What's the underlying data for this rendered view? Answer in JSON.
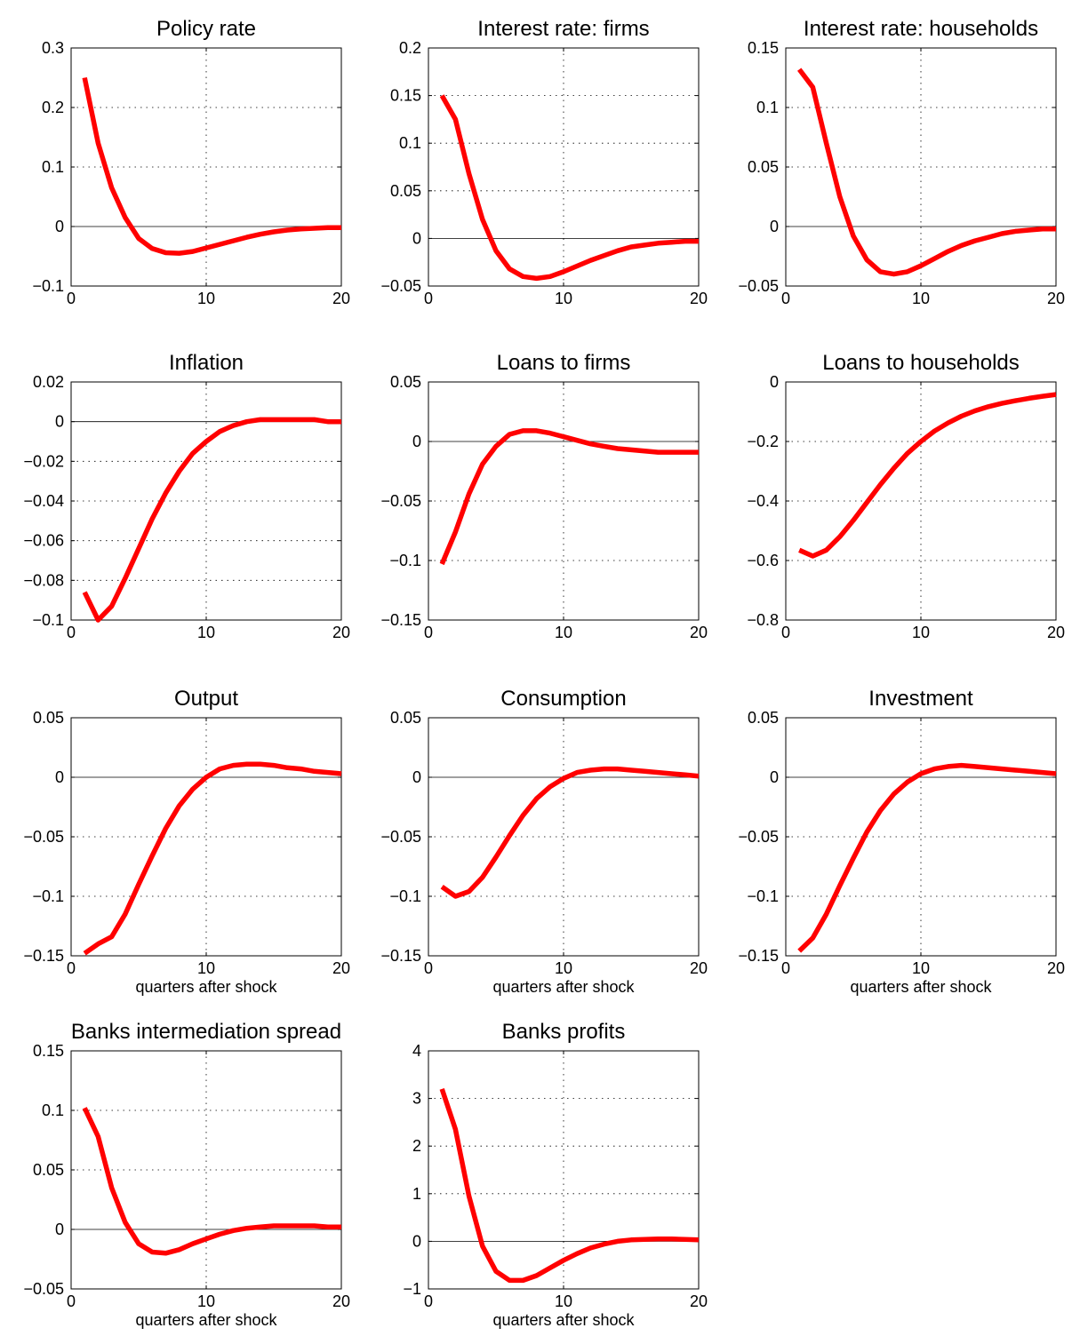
{
  "colors": {
    "line": "#ff0000",
    "axis": "#000000"
  },
  "chart_data": [
    {
      "type": "line",
      "title": "Policy rate",
      "xlabel": "",
      "xlim": [
        0,
        20
      ],
      "xticks": [
        0,
        10,
        20
      ],
      "ylim": [
        -0.1,
        0.3
      ],
      "yticks": [
        -0.1,
        0,
        0.1,
        0.2,
        0.3
      ],
      "ytick_labels": [
        "−0.1",
        "0",
        "0.1",
        "0.2",
        "0.3"
      ],
      "grid": true,
      "x": [
        1,
        2,
        3,
        4,
        5,
        6,
        7,
        8,
        9,
        10,
        11,
        12,
        13,
        14,
        15,
        16,
        17,
        18,
        19,
        20
      ],
      "values": [
        0.25,
        0.14,
        0.065,
        0.015,
        -0.02,
        -0.037,
        -0.044,
        -0.045,
        -0.042,
        -0.036,
        -0.03,
        -0.024,
        -0.018,
        -0.013,
        -0.009,
        -0.006,
        -0.004,
        -0.003,
        -0.002,
        -0.002
      ]
    },
    {
      "type": "line",
      "title": "Interest rate: firms",
      "xlabel": "",
      "xlim": [
        0,
        20
      ],
      "xticks": [
        0,
        10,
        20
      ],
      "ylim": [
        -0.05,
        0.2
      ],
      "yticks": [
        -0.05,
        0,
        0.05,
        0.1,
        0.15,
        0.2
      ],
      "ytick_labels": [
        "−0.05",
        "0",
        "0.05",
        "0.1",
        "0.15",
        "0.2"
      ],
      "grid": true,
      "x": [
        1,
        2,
        3,
        4,
        5,
        6,
        7,
        8,
        9,
        10,
        11,
        12,
        13,
        14,
        15,
        16,
        17,
        18,
        19,
        20
      ],
      "values": [
        0.15,
        0.125,
        0.068,
        0.02,
        -0.013,
        -0.032,
        -0.04,
        -0.042,
        -0.04,
        -0.035,
        -0.029,
        -0.023,
        -0.018,
        -0.013,
        -0.009,
        -0.007,
        -0.005,
        -0.004,
        -0.003,
        -0.003
      ]
    },
    {
      "type": "line",
      "title": "Interest rate: households",
      "xlabel": "",
      "xlim": [
        0,
        20
      ],
      "xticks": [
        0,
        10,
        20
      ],
      "ylim": [
        -0.05,
        0.15
      ],
      "yticks": [
        -0.05,
        0,
        0.05,
        0.1,
        0.15
      ],
      "ytick_labels": [
        "−0.05",
        "0",
        "0.05",
        "0.1",
        "0.15"
      ],
      "grid": true,
      "x": [
        1,
        2,
        3,
        4,
        5,
        6,
        7,
        8,
        9,
        10,
        11,
        12,
        13,
        14,
        15,
        16,
        17,
        18,
        19,
        20
      ],
      "values": [
        0.132,
        0.117,
        0.07,
        0.025,
        -0.008,
        -0.028,
        -0.038,
        -0.04,
        -0.038,
        -0.033,
        -0.027,
        -0.021,
        -0.016,
        -0.012,
        -0.009,
        -0.006,
        -0.004,
        -0.003,
        -0.002,
        -0.002
      ]
    },
    {
      "type": "line",
      "title": "Inflation",
      "xlabel": "",
      "xlim": [
        0,
        20
      ],
      "xticks": [
        0,
        10,
        20
      ],
      "ylim": [
        -0.1,
        0.02
      ],
      "yticks": [
        -0.1,
        -0.08,
        -0.06,
        -0.04,
        -0.02,
        0,
        0.02
      ],
      "ytick_labels": [
        "−0.1",
        "−0.08",
        "−0.06",
        "−0.04",
        "−0.02",
        "0",
        "0.02"
      ],
      "grid": true,
      "x": [
        1,
        2,
        3,
        4,
        5,
        6,
        7,
        8,
        9,
        10,
        11,
        12,
        13,
        14,
        15,
        16,
        17,
        18,
        19,
        20
      ],
      "values": [
        -0.086,
        -0.1,
        -0.093,
        -0.079,
        -0.064,
        -0.049,
        -0.036,
        -0.025,
        -0.016,
        -0.01,
        -0.005,
        -0.002,
        0.0,
        0.001,
        0.001,
        0.001,
        0.001,
        0.001,
        0.0,
        0.0
      ]
    },
    {
      "type": "line",
      "title": "Loans to firms",
      "xlabel": "",
      "xlim": [
        0,
        20
      ],
      "xticks": [
        0,
        10,
        20
      ],
      "ylim": [
        -0.15,
        0.05
      ],
      "yticks": [
        -0.15,
        -0.1,
        -0.05,
        0,
        0.05
      ],
      "ytick_labels": [
        "−0.15",
        "−0.1",
        "−0.05",
        "0",
        "0.05"
      ],
      "grid": true,
      "x": [
        1,
        2,
        3,
        4,
        5,
        6,
        7,
        8,
        9,
        10,
        11,
        12,
        13,
        14,
        15,
        16,
        17,
        18,
        19,
        20
      ],
      "values": [
        -0.103,
        -0.076,
        -0.044,
        -0.019,
        -0.004,
        0.006,
        0.009,
        0.009,
        0.007,
        0.004,
        0.001,
        -0.002,
        -0.004,
        -0.006,
        -0.007,
        -0.008,
        -0.009,
        -0.009,
        -0.009,
        -0.009
      ]
    },
    {
      "type": "line",
      "title": "Loans to households",
      "xlabel": "",
      "xlim": [
        0,
        20
      ],
      "xticks": [
        0,
        10,
        20
      ],
      "ylim": [
        -0.8,
        0
      ],
      "yticks": [
        -0.8,
        -0.6,
        -0.4,
        -0.2,
        0
      ],
      "ytick_labels": [
        "−0.8",
        "−0.6",
        "−0.4",
        "−0.2",
        "0"
      ],
      "grid": true,
      "x": [
        1,
        2,
        3,
        4,
        5,
        6,
        7,
        8,
        9,
        10,
        11,
        12,
        13,
        14,
        15,
        16,
        17,
        18,
        19,
        20
      ],
      "values": [
        -0.565,
        -0.585,
        -0.565,
        -0.52,
        -0.465,
        -0.405,
        -0.345,
        -0.29,
        -0.24,
        -0.2,
        -0.165,
        -0.138,
        -0.115,
        -0.097,
        -0.083,
        -0.072,
        -0.063,
        -0.055,
        -0.048,
        -0.042
      ]
    },
    {
      "type": "line",
      "title": "Output",
      "xlabel": "quarters after shock",
      "xlim": [
        0,
        20
      ],
      "xticks": [
        0,
        10,
        20
      ],
      "ylim": [
        -0.15,
        0.05
      ],
      "yticks": [
        -0.15,
        -0.1,
        -0.05,
        0,
        0.05
      ],
      "ytick_labels": [
        "−0.15",
        "−0.1",
        "−0.05",
        "0",
        "0.05"
      ],
      "grid": true,
      "x": [
        1,
        2,
        3,
        4,
        5,
        6,
        7,
        8,
        9,
        10,
        11,
        12,
        13,
        14,
        15,
        16,
        17,
        18,
        19,
        20
      ],
      "values": [
        -0.148,
        -0.14,
        -0.134,
        -0.115,
        -0.09,
        -0.066,
        -0.043,
        -0.024,
        -0.01,
        0.0,
        0.007,
        0.01,
        0.011,
        0.011,
        0.01,
        0.008,
        0.007,
        0.005,
        0.004,
        0.003
      ]
    },
    {
      "type": "line",
      "title": "Consumption",
      "xlabel": "quarters after shock",
      "xlim": [
        0,
        20
      ],
      "xticks": [
        0,
        10,
        20
      ],
      "ylim": [
        -0.15,
        0.05
      ],
      "yticks": [
        -0.15,
        -0.1,
        -0.05,
        0,
        0.05
      ],
      "ytick_labels": [
        "−0.15",
        "−0.1",
        "−0.05",
        "0",
        "0.05"
      ],
      "grid": true,
      "x": [
        1,
        2,
        3,
        4,
        5,
        6,
        7,
        8,
        9,
        10,
        11,
        12,
        13,
        14,
        15,
        16,
        17,
        18,
        19,
        20
      ],
      "values": [
        -0.092,
        -0.1,
        -0.096,
        -0.084,
        -0.067,
        -0.049,
        -0.032,
        -0.018,
        -0.008,
        -0.001,
        0.004,
        0.006,
        0.007,
        0.007,
        0.006,
        0.005,
        0.004,
        0.003,
        0.002,
        0.001
      ]
    },
    {
      "type": "line",
      "title": "Investment",
      "xlabel": "quarters after shock",
      "xlim": [
        0,
        20
      ],
      "xticks": [
        0,
        10,
        20
      ],
      "ylim": [
        -0.15,
        0.05
      ],
      "yticks": [
        -0.15,
        -0.1,
        -0.05,
        0,
        0.05
      ],
      "ytick_labels": [
        "−0.15",
        "−0.1",
        "−0.05",
        "0",
        "0.05"
      ],
      "grid": true,
      "x": [
        1,
        2,
        3,
        4,
        5,
        6,
        7,
        8,
        9,
        10,
        11,
        12,
        13,
        14,
        15,
        16,
        17,
        18,
        19,
        20
      ],
      "values": [
        -0.146,
        -0.135,
        -0.115,
        -0.091,
        -0.068,
        -0.046,
        -0.028,
        -0.014,
        -0.004,
        0.003,
        0.007,
        0.009,
        0.01,
        0.009,
        0.008,
        0.007,
        0.006,
        0.005,
        0.004,
        0.003
      ]
    },
    {
      "type": "line",
      "title": "Banks intermediation spread",
      "xlabel": "quarters after shock",
      "xlim": [
        0,
        20
      ],
      "xticks": [
        0,
        10,
        20
      ],
      "ylim": [
        -0.05,
        0.15
      ],
      "yticks": [
        -0.05,
        0,
        0.05,
        0.1,
        0.15
      ],
      "ytick_labels": [
        "−0.05",
        "0",
        "0.05",
        "0.1",
        "0.15"
      ],
      "grid": true,
      "x": [
        1,
        2,
        3,
        4,
        5,
        6,
        7,
        8,
        9,
        10,
        11,
        12,
        13,
        14,
        15,
        16,
        17,
        18,
        19,
        20
      ],
      "values": [
        0.102,
        0.078,
        0.035,
        0.006,
        -0.012,
        -0.019,
        -0.02,
        -0.017,
        -0.012,
        -0.008,
        -0.004,
        -0.001,
        0.001,
        0.002,
        0.003,
        0.003,
        0.003,
        0.003,
        0.002,
        0.002
      ]
    },
    {
      "type": "line",
      "title": "Banks profits",
      "xlabel": "quarters after shock",
      "xlim": [
        0,
        20
      ],
      "xticks": [
        0,
        10,
        20
      ],
      "ylim": [
        -1,
        4
      ],
      "yticks": [
        -1,
        0,
        1,
        2,
        3,
        4
      ],
      "ytick_labels": [
        "−1",
        "0",
        "1",
        "2",
        "3",
        "4"
      ],
      "grid": true,
      "x": [
        1,
        2,
        3,
        4,
        5,
        6,
        7,
        8,
        9,
        10,
        11,
        12,
        13,
        14,
        15,
        16,
        17,
        18,
        19,
        20
      ],
      "values": [
        3.2,
        2.35,
        0.95,
        -0.1,
        -0.63,
        -0.82,
        -0.82,
        -0.72,
        -0.56,
        -0.4,
        -0.26,
        -0.14,
        -0.06,
        0.0,
        0.03,
        0.04,
        0.05,
        0.05,
        0.04,
        0.03
      ]
    }
  ]
}
